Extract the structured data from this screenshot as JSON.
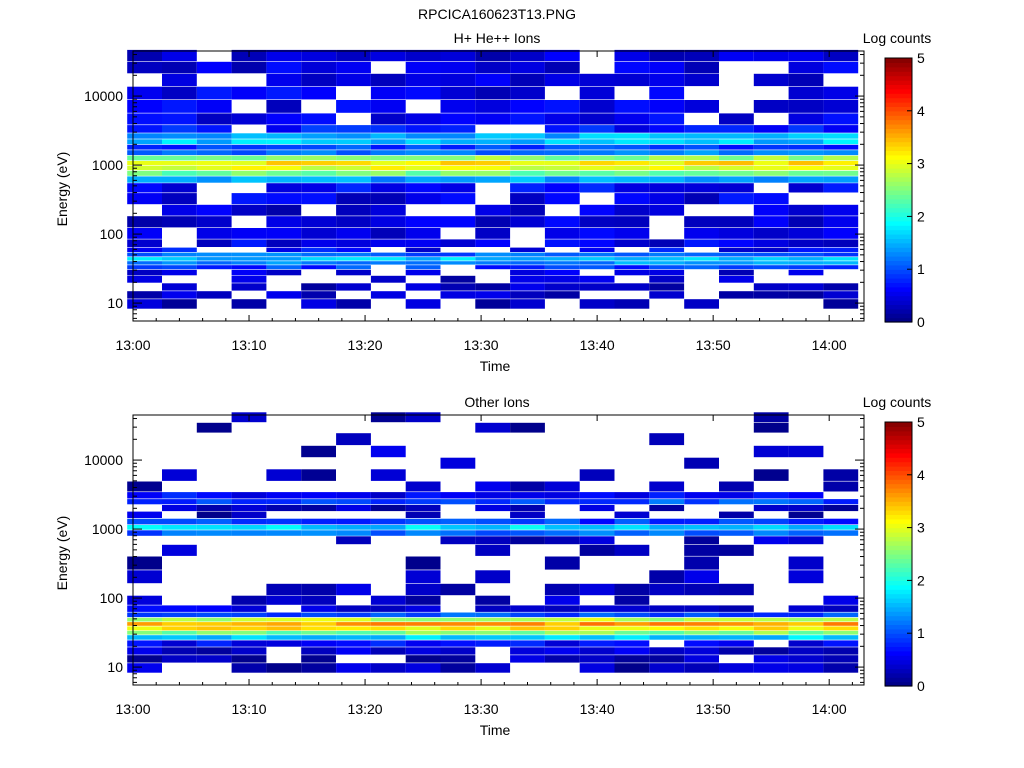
{
  "figure_title": "RPCICA160623T13.PNG",
  "chart_data": [
    {
      "type": "heatmap",
      "title": "H+ He++ Ions",
      "xlabel": "Time",
      "ylabel": "Energy (eV)",
      "x_ticks": [
        "13:00",
        "13:10",
        "13:20",
        "13:30",
        "13:40",
        "13:50",
        "14:00"
      ],
      "x_range": [
        "13:00",
        "14:03"
      ],
      "y_scale": "log",
      "y_ticks": [
        "10",
        "100",
        "1000",
        "10000"
      ],
      "y_range": [
        5.5,
        45000
      ],
      "colorbar": {
        "label": "Log counts",
        "range": [
          0,
          5
        ],
        "ticks": [
          "0",
          "1",
          "2",
          "3",
          "4",
          "5"
        ]
      },
      "time_bins": [
        "13:01",
        "13:04",
        "13:07",
        "13:10",
        "13:13",
        "13:16",
        "13:19",
        "13:22",
        "13:25",
        "13:28",
        "13:31",
        "13:34",
        "13:37",
        "13:40",
        "13:43",
        "13:46",
        "13:49",
        "13:52",
        "13:55",
        "13:58",
        "14:01"
      ],
      "energy_profile": [
        {
          "energy": 10,
          "log_counts": 0.3,
          "fill": 0.45
        },
        {
          "energy": 13,
          "log_counts": 0.3,
          "fill": 0.5
        },
        {
          "energy": 17,
          "log_counts": 0.35,
          "fill": 0.55
        },
        {
          "energy": 22,
          "log_counts": 0.4,
          "fill": 0.55
        },
        {
          "energy": 28,
          "log_counts": 0.5,
          "fill": 0.6
        },
        {
          "energy": 33,
          "log_counts": 0.9,
          "fill": 0.95
        },
        {
          "energy": 38,
          "log_counts": 1.3,
          "fill": 1.0
        },
        {
          "energy": 43,
          "log_counts": 1.6,
          "fill": 1.0
        },
        {
          "energy": 50,
          "log_counts": 1.1,
          "fill": 1.0
        },
        {
          "energy": 58,
          "log_counts": 0.6,
          "fill": 0.85
        },
        {
          "energy": 70,
          "log_counts": 0.5,
          "fill": 0.75
        },
        {
          "energy": 100,
          "log_counts": 0.45,
          "fill": 0.75
        },
        {
          "energy": 150,
          "log_counts": 0.45,
          "fill": 0.75
        },
        {
          "energy": 220,
          "log_counts": 0.45,
          "fill": 0.75
        },
        {
          "energy": 320,
          "log_counts": 0.5,
          "fill": 0.8
        },
        {
          "energy": 480,
          "log_counts": 0.6,
          "fill": 0.85
        },
        {
          "energy": 620,
          "log_counts": 1.4,
          "fill": 1.0
        },
        {
          "energy": 760,
          "log_counts": 2.4,
          "fill": 1.0
        },
        {
          "energy": 900,
          "log_counts": 3.0,
          "fill": 1.0
        },
        {
          "energy": 1050,
          "log_counts": 3.2,
          "fill": 1.0
        },
        {
          "energy": 1250,
          "log_counts": 2.6,
          "fill": 1.0
        },
        {
          "energy": 1500,
          "log_counts": 1.2,
          "fill": 1.0
        },
        {
          "energy": 1800,
          "log_counts": 0.9,
          "fill": 1.0
        },
        {
          "energy": 2150,
          "log_counts": 1.6,
          "fill": 1.0
        },
        {
          "energy": 2600,
          "log_counts": 1.5,
          "fill": 1.0
        },
        {
          "energy": 3200,
          "log_counts": 0.7,
          "fill": 0.95
        },
        {
          "energy": 4500,
          "log_counts": 0.55,
          "fill": 0.85
        },
        {
          "energy": 7000,
          "log_counts": 0.5,
          "fill": 0.8
        },
        {
          "energy": 11000,
          "log_counts": 0.5,
          "fill": 0.8
        },
        {
          "energy": 17000,
          "log_counts": 0.5,
          "fill": 0.8
        },
        {
          "energy": 26000,
          "log_counts": 0.45,
          "fill": 0.8
        },
        {
          "energy": 38000,
          "log_counts": 0.4,
          "fill": 0.75
        }
      ]
    },
    {
      "type": "heatmap",
      "title": "Other Ions",
      "xlabel": "Time",
      "ylabel": "Energy (eV)",
      "x_ticks": [
        "13:00",
        "13:10",
        "13:20",
        "13:30",
        "13:40",
        "13:50",
        "14:00"
      ],
      "x_range": [
        "13:00",
        "14:03"
      ],
      "y_scale": "log",
      "y_ticks": [
        "10",
        "100",
        "1000",
        "10000"
      ],
      "y_range": [
        5.5,
        45000
      ],
      "colorbar": {
        "label": "Log counts",
        "range": [
          0,
          5
        ],
        "ticks": [
          "0",
          "1",
          "2",
          "3",
          "4",
          "5"
        ]
      },
      "time_bins": [
        "13:01",
        "13:04",
        "13:07",
        "13:10",
        "13:13",
        "13:16",
        "13:19",
        "13:22",
        "13:25",
        "13:28",
        "13:31",
        "13:34",
        "13:37",
        "13:40",
        "13:43",
        "13:46",
        "13:49",
        "13:52",
        "13:55",
        "13:58",
        "14:01"
      ],
      "energy_profile": [
        {
          "energy": 10,
          "log_counts": 0.3,
          "fill": 0.7
        },
        {
          "energy": 13,
          "log_counts": 0.3,
          "fill": 0.75
        },
        {
          "energy": 17,
          "log_counts": 0.35,
          "fill": 0.8
        },
        {
          "energy": 22,
          "log_counts": 0.6,
          "fill": 0.95
        },
        {
          "energy": 27,
          "log_counts": 1.6,
          "fill": 1.0
        },
        {
          "energy": 31,
          "log_counts": 2.5,
          "fill": 1.0
        },
        {
          "energy": 36,
          "log_counts": 3.2,
          "fill": 1.0
        },
        {
          "energy": 42,
          "log_counts": 3.6,
          "fill": 1.0
        },
        {
          "energy": 48,
          "log_counts": 2.8,
          "fill": 1.0
        },
        {
          "energy": 56,
          "log_counts": 1.0,
          "fill": 1.0
        },
        {
          "energy": 68,
          "log_counts": 0.45,
          "fill": 0.9
        },
        {
          "energy": 90,
          "log_counts": 0.35,
          "fill": 0.75
        },
        {
          "energy": 130,
          "log_counts": 0.3,
          "fill": 0.65
        },
        {
          "energy": 200,
          "log_counts": 0.3,
          "fill": 0.55
        },
        {
          "energy": 320,
          "log_counts": 0.3,
          "fill": 0.35
        },
        {
          "energy": 500,
          "log_counts": 0.3,
          "fill": 0.25
        },
        {
          "energy": 700,
          "log_counts": 0.3,
          "fill": 0.35
        },
        {
          "energy": 880,
          "log_counts": 1.1,
          "fill": 1.0
        },
        {
          "energy": 1050,
          "log_counts": 1.7,
          "fill": 1.0
        },
        {
          "energy": 1250,
          "log_counts": 0.9,
          "fill": 1.0
        },
        {
          "energy": 1600,
          "log_counts": 0.3,
          "fill": 0.4
        },
        {
          "energy": 2000,
          "log_counts": 0.35,
          "fill": 0.6
        },
        {
          "energy": 2500,
          "log_counts": 1.0,
          "fill": 1.0
        },
        {
          "energy": 2950,
          "log_counts": 0.6,
          "fill": 0.9
        },
        {
          "energy": 4000,
          "log_counts": 0.3,
          "fill": 0.4
        },
        {
          "energy": 6000,
          "log_counts": 0.3,
          "fill": 0.2
        },
        {
          "energy": 9000,
          "log_counts": 0.3,
          "fill": 0.15
        },
        {
          "energy": 13000,
          "log_counts": 0.3,
          "fill": 0.2
        },
        {
          "energy": 20000,
          "log_counts": 0.3,
          "fill": 0.15
        },
        {
          "energy": 30000,
          "log_counts": 0.3,
          "fill": 0.15
        },
        {
          "energy": 40000,
          "log_counts": 0.3,
          "fill": 0.25
        }
      ]
    }
  ]
}
